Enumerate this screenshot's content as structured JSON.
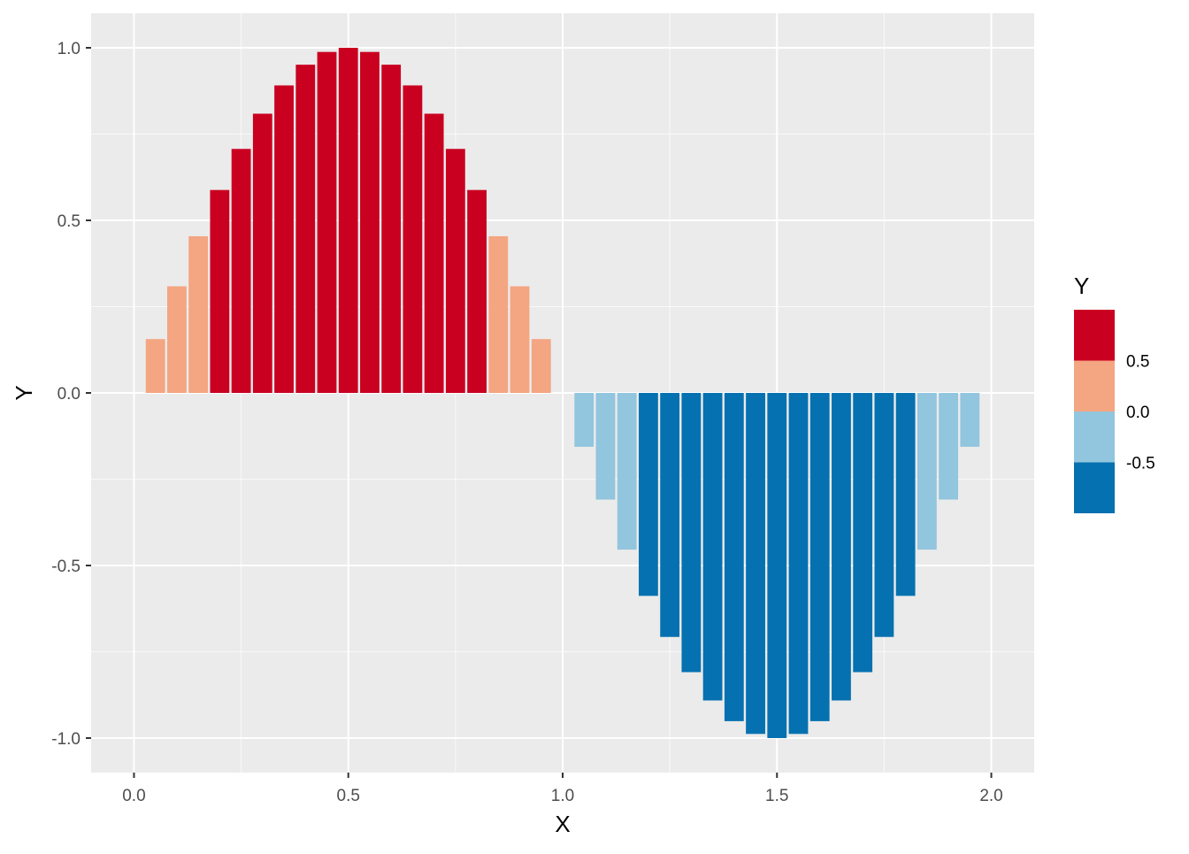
{
  "chart_data": {
    "type": "bar",
    "xlabel": "X",
    "ylabel": "Y",
    "xlim": [
      -0.1,
      2.1
    ],
    "ylim": [
      -1.1,
      1.1
    ],
    "x_ticks": [
      "0.0",
      "0.5",
      "1.0",
      "1.5",
      "2.0"
    ],
    "y_ticks": [
      "-1.0",
      "-0.5",
      "0.0",
      "0.5",
      "1.0"
    ],
    "grid": true,
    "bar_width": 0.045,
    "x": [
      0.05,
      0.1,
      0.15,
      0.2,
      0.25,
      0.3,
      0.35,
      0.4,
      0.45,
      0.5,
      0.55,
      0.6,
      0.65,
      0.7,
      0.75,
      0.8,
      0.85,
      0.9,
      0.95,
      1.0,
      1.05,
      1.1,
      1.15,
      1.2,
      1.25,
      1.3,
      1.35,
      1.4,
      1.45,
      1.5,
      1.55,
      1.6,
      1.65,
      1.7,
      1.75,
      1.8,
      1.85,
      1.9,
      1.95
    ],
    "values": [
      0.156,
      0.309,
      0.454,
      0.588,
      0.707,
      0.809,
      0.891,
      0.951,
      0.988,
      1.0,
      0.988,
      0.951,
      0.891,
      0.809,
      0.707,
      0.588,
      0.454,
      0.309,
      0.156,
      0.0,
      -0.156,
      -0.309,
      -0.454,
      -0.588,
      -0.707,
      -0.809,
      -0.891,
      -0.951,
      -0.988,
      -1.0,
      -0.988,
      -0.951,
      -0.891,
      -0.809,
      -0.707,
      -0.588,
      -0.454,
      -0.309,
      -0.156
    ],
    "legend": {
      "title": "Y",
      "position": "right",
      "labels": [
        "0.5",
        "0.0",
        "-0.5"
      ],
      "bins": [
        {
          "min": 0.5,
          "max": 1.01,
          "color": "#CA0020"
        },
        {
          "min": 0.0,
          "max": 0.5,
          "color": "#F4A582"
        },
        {
          "min": -0.5,
          "max": 0.0,
          "color": "#92C5DE"
        },
        {
          "min": -1.01,
          "max": -0.5,
          "color": "#0571B0"
        }
      ]
    },
    "colors": {
      "panel_bg": "#EBEBEB",
      "grid_major": "#FFFFFF",
      "axis_text": "#4D4D4D",
      "title_text": "#000000"
    }
  }
}
